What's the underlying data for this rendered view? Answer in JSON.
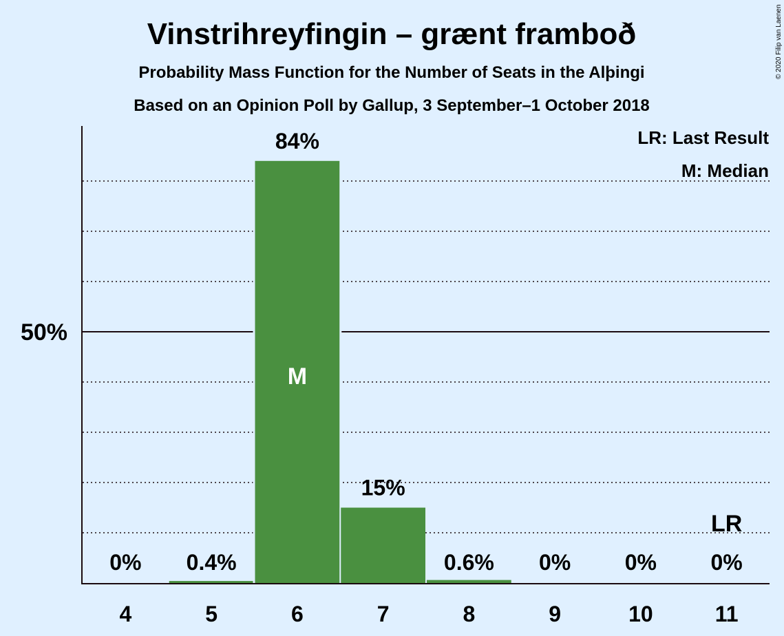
{
  "chart_data": {
    "type": "bar",
    "title": "Vinstrihreyfingin – grænt framboð",
    "subtitle": "Probability Mass Function for the Number of Seats in the Alþingi",
    "subtitle2": "Based on an Opinion Poll by Gallup, 3 September–1 October 2018",
    "copyright": "© 2020 Filip van Laenen",
    "categories": [
      "4",
      "5",
      "6",
      "7",
      "8",
      "9",
      "10",
      "11"
    ],
    "values": [
      0,
      0.4,
      84,
      15,
      0.6,
      0,
      0,
      0
    ],
    "value_labels": [
      "0%",
      "0.4%",
      "84%",
      "15%",
      "0.6%",
      "0%",
      "0%",
      "0%"
    ],
    "ylim": [
      0,
      91
    ],
    "y_major_tick": {
      "value": 50,
      "label": "50%"
    },
    "y_minor_ticks": [
      10,
      20,
      30,
      40,
      60,
      70,
      80
    ],
    "median_category": "6",
    "median_marker": "M",
    "last_result_category": "11",
    "last_result_marker": "LR",
    "legend": {
      "last_result": "LR: Last Result",
      "median": "M: Median",
      "position": "top-right"
    },
    "colors": {
      "background": "#e0f0ff",
      "bar": "#4a9040",
      "text": "#1a0a0f",
      "median_marker": "#ffffff"
    }
  }
}
